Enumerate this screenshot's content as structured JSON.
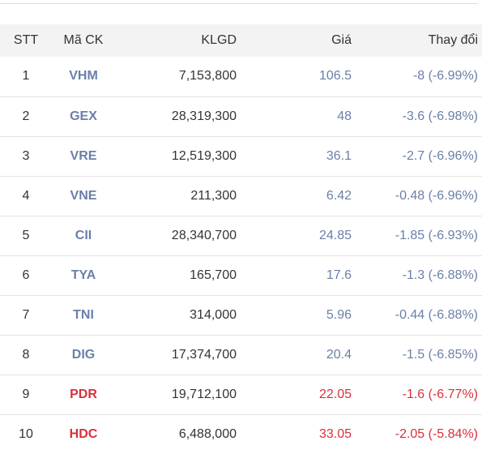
{
  "colors": {
    "normal": "#6b7fa8",
    "highlight": "#d9303b"
  },
  "table": {
    "headers": {
      "stt": "STT",
      "code": "Mã CK",
      "volume": "KLGD",
      "price": "Giá",
      "change": "Thay đổi"
    },
    "rows": [
      {
        "stt": "1",
        "code": "VHM",
        "volume": "7,153,800",
        "price": "106.5",
        "change": "-8 (-6.99%)",
        "tone": "normal"
      },
      {
        "stt": "2",
        "code": "GEX",
        "volume": "28,319,300",
        "price": "48",
        "change": "-3.6 (-6.98%)",
        "tone": "normal"
      },
      {
        "stt": "3",
        "code": "VRE",
        "volume": "12,519,300",
        "price": "36.1",
        "change": "-2.7 (-6.96%)",
        "tone": "normal"
      },
      {
        "stt": "4",
        "code": "VNE",
        "volume": "211,300",
        "price": "6.42",
        "change": "-0.48 (-6.96%)",
        "tone": "normal"
      },
      {
        "stt": "5",
        "code": "CII",
        "volume": "28,340,700",
        "price": "24.85",
        "change": "-1.85 (-6.93%)",
        "tone": "normal"
      },
      {
        "stt": "6",
        "code": "TYA",
        "volume": "165,700",
        "price": "17.6",
        "change": "-1.3 (-6.88%)",
        "tone": "normal"
      },
      {
        "stt": "7",
        "code": "TNI",
        "volume": "314,000",
        "price": "5.96",
        "change": "-0.44 (-6.88%)",
        "tone": "normal"
      },
      {
        "stt": "8",
        "code": "DIG",
        "volume": "17,374,700",
        "price": "20.4",
        "change": "-1.5 (-6.85%)",
        "tone": "normal"
      },
      {
        "stt": "9",
        "code": "PDR",
        "volume": "19,712,100",
        "price": "22.05",
        "change": "-1.6 (-6.77%)",
        "tone": "highlight"
      },
      {
        "stt": "10",
        "code": "HDC",
        "volume": "6,488,000",
        "price": "33.05",
        "change": "-2.05 (-5.84%)",
        "tone": "highlight"
      }
    ]
  }
}
